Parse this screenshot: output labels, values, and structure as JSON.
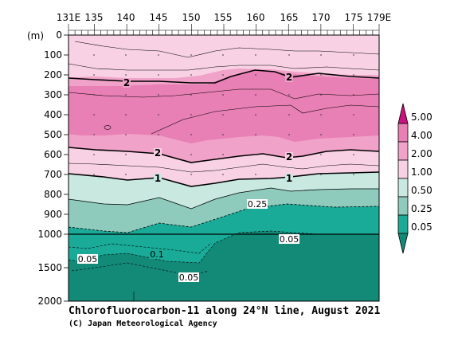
{
  "chart_data": {
    "type": "heatmap",
    "title": "Chlorofluorocarbon-11 along 24°N line, August 2021",
    "credit": "(C) Japan Meteorological Agency",
    "y_unit": "(m)",
    "x_ticks": [
      "131E",
      "135",
      "140",
      "145",
      "150",
      "155",
      "160",
      "165",
      "170",
      "175",
      "179E"
    ],
    "y_ticks": [
      "0",
      "100",
      "200",
      "300",
      "400",
      "500",
      "600",
      "700",
      "800",
      "900",
      "1000",
      "1500",
      "2000"
    ],
    "colorbar_levels": [
      "5.00",
      "4.00",
      "2.00",
      "1.00",
      "0.50",
      "0.25",
      "0.05"
    ],
    "colorbar_colors": [
      "#c8147e",
      "#e87fb5",
      "#f0a2c8",
      "#f8d2e4",
      "#c8e8e0",
      "#8ecbbd",
      "#1aaa98",
      "#138a78"
    ],
    "contour_labels": {
      "c2_upper": "2",
      "c2_upper_east": "2",
      "c2_lower": "2",
      "c2_lower_east": "2",
      "c1_west": "1",
      "c1_east": "1",
      "c025": "0.25",
      "c005_east": "0.05",
      "c01": "0.1",
      "c005_west": "0.05",
      "c005_deep": "0.05"
    },
    "ylim": [
      0,
      2000
    ],
    "xlim": [
      "131E",
      "179E"
    ]
  }
}
